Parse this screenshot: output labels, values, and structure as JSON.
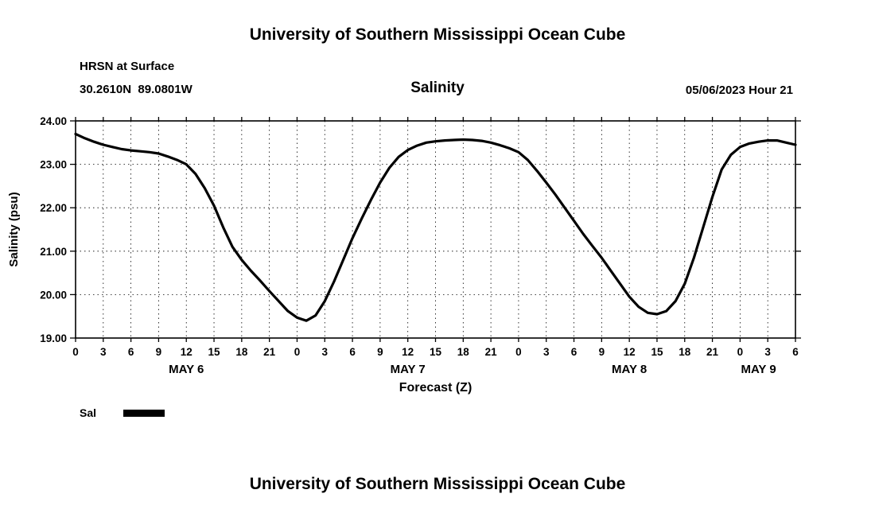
{
  "header": {
    "title": "University of Southern Mississippi Ocean Cube"
  },
  "panel": {
    "station": "HRSN at Surface",
    "coords": "30.2610N  89.0801W",
    "variable": "Salinity",
    "timestamp": "05/06/2023 Hour 21"
  },
  "legend": {
    "label": "Sal",
    "color": "#000000"
  },
  "footer": {
    "title": "University of Southern Mississippi Ocean Cube"
  },
  "chart_data": {
    "type": "line",
    "title": "Salinity",
    "xlabel": "Forecast (Z)",
    "ylabel": "Salinity (psu)",
    "xlim": [
      0,
      78
    ],
    "ylim": [
      19,
      24
    ],
    "xtick_step_hours": 3,
    "ytick_step": 1,
    "grid": "dashed",
    "legend_position": "below-left",
    "ytick_labels": [
      "19.00",
      "20.00",
      "21.00",
      "22.00",
      "23.00",
      "24.00"
    ],
    "day_labels": [
      {
        "label": "MAY 6",
        "hour": 12
      },
      {
        "label": "MAY 7",
        "hour": 36
      },
      {
        "label": "MAY 8",
        "hour": 60
      },
      {
        "label": "MAY 9",
        "hour": 74
      }
    ],
    "series": [
      {
        "name": "Sal",
        "color": "#000000",
        "points": [
          [
            0,
            23.7
          ],
          [
            1,
            23.6
          ],
          [
            2,
            23.52
          ],
          [
            3,
            23.45
          ],
          [
            4,
            23.4
          ],
          [
            5,
            23.35
          ],
          [
            6,
            23.32
          ],
          [
            7,
            23.3
          ],
          [
            8,
            23.28
          ],
          [
            9,
            23.25
          ],
          [
            10,
            23.18
          ],
          [
            11,
            23.1
          ],
          [
            12,
            23.0
          ],
          [
            13,
            22.78
          ],
          [
            14,
            22.45
          ],
          [
            15,
            22.05
          ],
          [
            16,
            21.55
          ],
          [
            17,
            21.1
          ],
          [
            18,
            20.8
          ],
          [
            19,
            20.55
          ],
          [
            20,
            20.32
          ],
          [
            21,
            20.08
          ],
          [
            22,
            19.85
          ],
          [
            23,
            19.62
          ],
          [
            24,
            19.47
          ],
          [
            25,
            19.4
          ],
          [
            26,
            19.52
          ],
          [
            27,
            19.85
          ],
          [
            28,
            20.3
          ],
          [
            29,
            20.8
          ],
          [
            30,
            21.3
          ],
          [
            31,
            21.75
          ],
          [
            32,
            22.18
          ],
          [
            33,
            22.58
          ],
          [
            34,
            22.92
          ],
          [
            35,
            23.17
          ],
          [
            36,
            23.33
          ],
          [
            37,
            23.43
          ],
          [
            38,
            23.5
          ],
          [
            39,
            23.53
          ],
          [
            40,
            23.55
          ],
          [
            41,
            23.56
          ],
          [
            42,
            23.57
          ],
          [
            43,
            23.56
          ],
          [
            44,
            23.54
          ],
          [
            45,
            23.5
          ],
          [
            46,
            23.44
          ],
          [
            47,
            23.37
          ],
          [
            48,
            23.28
          ],
          [
            49,
            23.1
          ],
          [
            50,
            22.85
          ],
          [
            51,
            22.58
          ],
          [
            52,
            22.3
          ],
          [
            53,
            22.0
          ],
          [
            54,
            21.7
          ],
          [
            55,
            21.4
          ],
          [
            56,
            21.12
          ],
          [
            57,
            20.85
          ],
          [
            58,
            20.55
          ],
          [
            59,
            20.25
          ],
          [
            60,
            19.95
          ],
          [
            61,
            19.72
          ],
          [
            62,
            19.58
          ],
          [
            63,
            19.55
          ],
          [
            64,
            19.62
          ],
          [
            65,
            19.85
          ],
          [
            66,
            20.25
          ],
          [
            67,
            20.85
          ],
          [
            68,
            21.55
          ],
          [
            69,
            22.25
          ],
          [
            70,
            22.88
          ],
          [
            71,
            23.22
          ],
          [
            72,
            23.4
          ],
          [
            73,
            23.48
          ],
          [
            74,
            23.52
          ],
          [
            75,
            23.55
          ],
          [
            76,
            23.55
          ],
          [
            77,
            23.5
          ],
          [
            78,
            23.45
          ]
        ]
      }
    ]
  }
}
